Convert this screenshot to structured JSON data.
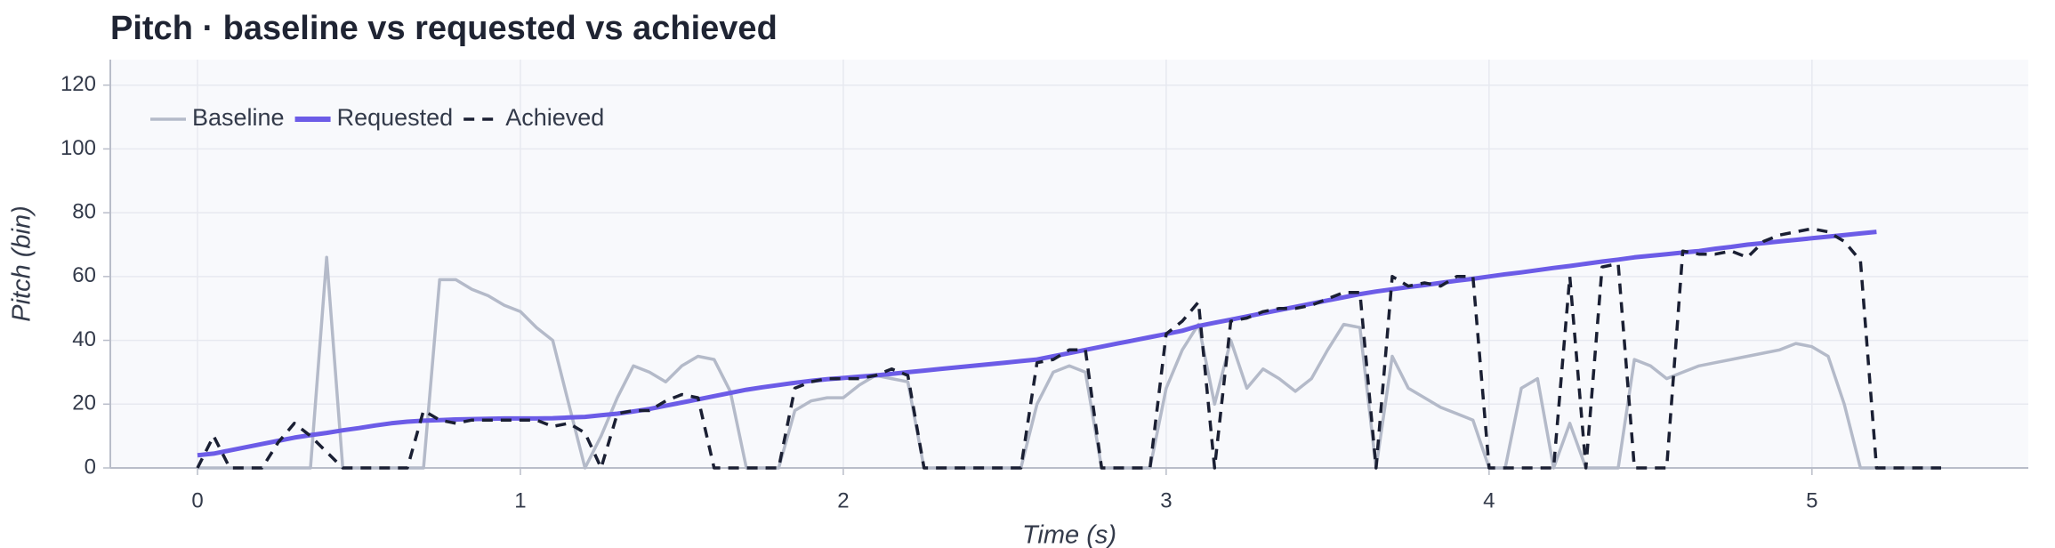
{
  "chart_data": {
    "type": "line",
    "title": "Pitch · baseline vs requested vs achieved",
    "x_label": "Time (s)",
    "y_label": "Pitch (bin)",
    "x": [
      0,
      0.05,
      0.1,
      0.15,
      0.2,
      0.25,
      0.3,
      0.35,
      0.4,
      0.45,
      0.5,
      0.55,
      0.6,
      0.65,
      0.7,
      0.75,
      0.8,
      0.85,
      0.9,
      0.95,
      1,
      1.05,
      1.1,
      1.15,
      1.2,
      1.25,
      1.3,
      1.35,
      1.4,
      1.45,
      1.5,
      1.55,
      1.6,
      1.65,
      1.7,
      1.75,
      1.8,
      1.85,
      1.9,
      1.95,
      2,
      2.05,
      2.1,
      2.15,
      2.2,
      2.25,
      2.3,
      2.35,
      2.4,
      2.45,
      2.5,
      2.55,
      2.6,
      2.65,
      2.7,
      2.75,
      2.8,
      2.85,
      2.9,
      2.95,
      3,
      3.05,
      3.1,
      3.15,
      3.2,
      3.25,
      3.3,
      3.35,
      3.4,
      3.45,
      3.5,
      3.55,
      3.6,
      3.65,
      3.7,
      3.75,
      3.8,
      3.85,
      3.9,
      3.95,
      4,
      4.05,
      4.1,
      4.15,
      4.2,
      4.25,
      4.3,
      4.35,
      4.4,
      4.45,
      4.5,
      4.55,
      4.6,
      4.65,
      4.7,
      4.75,
      4.8,
      4.85,
      4.9,
      4.95,
      5,
      5.05,
      5.1,
      5.15,
      5.2,
      5.25,
      5.3,
      5.35,
      5.4
    ],
    "series": [
      {
        "name": "Baseline",
        "color": "#b4bac9",
        "dash": "solid",
        "values": [
          0,
          0,
          0,
          0,
          0,
          0,
          0,
          0,
          66,
          0,
          0,
          0,
          0,
          0,
          0,
          59,
          59,
          56,
          54,
          51,
          49,
          44,
          40,
          20,
          0,
          10,
          22,
          32,
          30,
          27,
          32,
          35,
          34,
          24,
          0,
          0,
          0,
          18,
          21,
          22,
          22,
          26,
          29,
          28,
          27,
          0,
          0,
          0,
          0,
          0,
          0,
          0,
          20,
          30,
          32,
          30,
          0,
          0,
          0,
          0,
          25,
          37,
          45,
          20,
          40,
          25,
          31,
          28,
          24,
          28,
          37,
          45,
          44,
          0,
          35,
          25,
          22,
          19,
          17,
          15,
          0,
          0,
          25,
          28,
          0,
          14,
          0,
          0,
          0,
          34,
          32,
          28,
          30,
          32,
          33,
          34,
          35,
          36,
          37,
          39,
          38,
          35,
          20,
          0,
          0,
          0,
          0,
          0,
          0
        ]
      },
      {
        "name": "Requested",
        "color": "#6c5ce7",
        "dash": "solid",
        "values": [
          4,
          4.5,
          5.5,
          6.5,
          7.5,
          8.5,
          9.5,
          10.3,
          11,
          11.8,
          12.5,
          13.3,
          14,
          14.5,
          14.8,
          15,
          15.2,
          15.3,
          15.4,
          15.5,
          15.5,
          15.5,
          15.6,
          15.8,
          16,
          16.5,
          17,
          17.7,
          18.5,
          19.5,
          20.5,
          21.5,
          22.5,
          23.5,
          24.5,
          25.3,
          26,
          26.7,
          27.3,
          27.8,
          28.2,
          28.6,
          29,
          29.5,
          30,
          30.5,
          31,
          31.5,
          32,
          32.5,
          33,
          33.5,
          34,
          35,
          36,
          37,
          38,
          39,
          40,
          41,
          42,
          43,
          44.5,
          45.5,
          46.5,
          47.5,
          48.5,
          49.5,
          50.5,
          51.5,
          52.5,
          53.5,
          54.5,
          55.3,
          56,
          56.7,
          57.3,
          58,
          58.7,
          59.3,
          60,
          60.7,
          61.3,
          62,
          62.7,
          63.3,
          64,
          64.7,
          65.3,
          66,
          66.5,
          67,
          67.5,
          68,
          68.7,
          69.3,
          70,
          70.5,
          71,
          71.5,
          72,
          72.5,
          73,
          73.5,
          74,
          null,
          null,
          null,
          null
        ]
      },
      {
        "name": "Achieved",
        "color": "#1a1f33",
        "dash": "dashed",
        "values": [
          0,
          10,
          0,
          0,
          0,
          8,
          14,
          10,
          5,
          0,
          0,
          0,
          0,
          0,
          18,
          15,
          14,
          15,
          15,
          15,
          15,
          15,
          13,
          14,
          11,
          0,
          17,
          18,
          18,
          21,
          23,
          22,
          0,
          0,
          0,
          0,
          0,
          25,
          27,
          28,
          28,
          28,
          29,
          31,
          29,
          0,
          0,
          0,
          0,
          0,
          0,
          0,
          33,
          34,
          37,
          37,
          0,
          0,
          0,
          0,
          42,
          46,
          52,
          0,
          46,
          47,
          49,
          50,
          50,
          51,
          53,
          55,
          55,
          0,
          60,
          57,
          58,
          57,
          60,
          60,
          0,
          0,
          0,
          0,
          0,
          60,
          0,
          63,
          64,
          0,
          0,
          0,
          68,
          67,
          67,
          68,
          66,
          71,
          73,
          74,
          75,
          74,
          71,
          65,
          0,
          0,
          0,
          0,
          0
        ]
      }
    ],
    "xlim": [
      -0.27,
      5.67
    ],
    "ylim": [
      0,
      128
    ],
    "xticks": [
      0,
      1,
      2,
      3,
      4,
      5
    ],
    "yticks": [
      0,
      20,
      40,
      60,
      80,
      100,
      120
    ],
    "grid": true,
    "legend": "upper left"
  }
}
